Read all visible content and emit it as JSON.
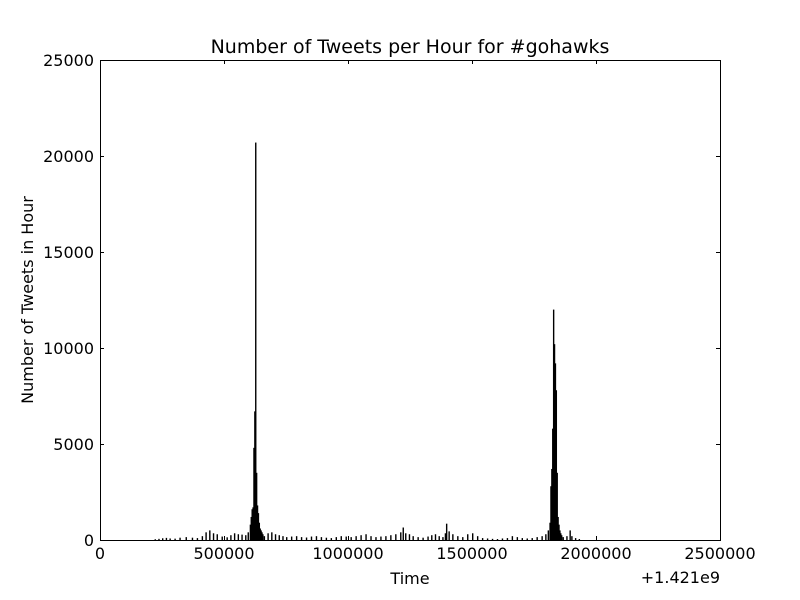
{
  "chart_data": {
    "type": "bar",
    "title": "Number of Tweets per Hour for #gohawks",
    "xlabel": "Time",
    "ylabel": "Number of Tweets in Hour",
    "x_offset_label": "+1.421e9",
    "xlim": [
      0,
      2500000
    ],
    "ylim": [
      0,
      25000
    ],
    "xticks": [
      0,
      500000,
      1000000,
      1500000,
      2000000,
      2500000
    ],
    "xtick_labels": [
      "0",
      "500000",
      "1000000",
      "1500000",
      "2000000",
      "2500000"
    ],
    "yticks": [
      0,
      5000,
      10000,
      15000,
      20000,
      25000
    ],
    "ytick_labels": [
      "0",
      "5000",
      "10000",
      "15000",
      "20000",
      "25000"
    ],
    "grid": false,
    "bar_color": "#000000",
    "bar_width": 3600,
    "x": [
      220000,
      235000,
      250000,
      265000,
      280000,
      300000,
      320000,
      345000,
      370000,
      390000,
      410000,
      425000,
      440000,
      455000,
      470000,
      490000,
      510000,
      525000,
      540000,
      555000,
      570000,
      585000,
      595000,
      603600,
      607200,
      610800,
      614400,
      618000,
      621600,
      625200,
      628800,
      632400,
      636000,
      639600,
      643200,
      646800,
      650400,
      654000,
      660000,
      675000,
      690000,
      705000,
      720000,
      735000,
      750000,
      770000,
      790000,
      810000,
      830000,
      850000,
      870000,
      890000,
      910000,
      930000,
      950000,
      970000,
      990000,
      1010000,
      1030000,
      1050000,
      1070000,
      1090000,
      1110000,
      1130000,
      1150000,
      1170000,
      1190000,
      1210000,
      1220000,
      1230000,
      1245000,
      1260000,
      1280000,
      1300000,
      1320000,
      1335000,
      1350000,
      1365000,
      1380000,
      1390000,
      1395000,
      1405000,
      1420000,
      1440000,
      1460000,
      1480000,
      1500000,
      1520000,
      1540000,
      1560000,
      1580000,
      1600000,
      1620000,
      1640000,
      1660000,
      1680000,
      1700000,
      1720000,
      1740000,
      1760000,
      1780000,
      1795000,
      1805000,
      1812000,
      1815600,
      1819200,
      1822800,
      1826400,
      1830000,
      1833600,
      1837200,
      1840800,
      1844400,
      1848000,
      1851600,
      1855200,
      1858800,
      1865000,
      1880000,
      1893000,
      1900000,
      1915000,
      1930000
    ],
    "values": [
      40,
      60,
      90,
      110,
      80,
      70,
      120,
      150,
      120,
      100,
      200,
      400,
      500,
      350,
      300,
      180,
      140,
      250,
      350,
      300,
      280,
      250,
      400,
      800,
      1200,
      1600,
      1700,
      4800,
      6700,
      20700,
      3500,
      1800,
      1400,
      900,
      600,
      500,
      400,
      300,
      200,
      350,
      400,
      300,
      250,
      200,
      150,
      180,
      200,
      150,
      130,
      180,
      200,
      150,
      120,
      100,
      150,
      200,
      180,
      150,
      200,
      250,
      300,
      200,
      150,
      180,
      200,
      250,
      300,
      400,
      650,
      350,
      300,
      200,
      150,
      120,
      180,
      250,
      300,
      200,
      150,
      350,
      850,
      450,
      300,
      200,
      150,
      300,
      350,
      200,
      100,
      80,
      60,
      50,
      80,
      100,
      200,
      150,
      100,
      80,
      100,
      150,
      200,
      300,
      500,
      900,
      2800,
      3700,
      5800,
      12000,
      10200,
      9200,
      7800,
      3500,
      1200,
      800,
      500,
      350,
      250,
      150,
      200,
      500,
      200,
      100,
      50
    ]
  }
}
